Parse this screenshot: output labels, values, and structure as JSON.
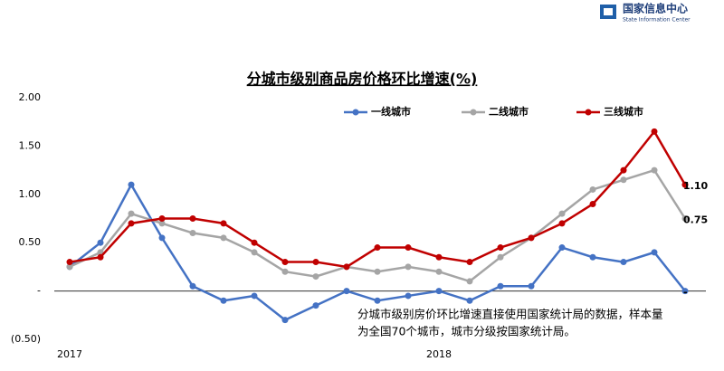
{
  "header": {
    "org_cn": "国家信息中心",
    "org_en": "State Information Center"
  },
  "chart_data": {
    "type": "line",
    "title": "分城市级别商品房价格环比增速(%)",
    "categories": [
      "2017",
      null,
      null,
      null,
      null,
      null,
      null,
      null,
      null,
      null,
      null,
      null,
      "2018",
      null,
      null,
      null,
      null,
      null,
      null,
      null,
      null
    ],
    "series": [
      {
        "name": "一线城市",
        "color": "#4472c4",
        "values": [
          0.25,
          0.5,
          1.1,
          0.55,
          0.05,
          -0.1,
          -0.05,
          -0.3,
          -0.15,
          0,
          -0.1,
          -0.05,
          0,
          -0.1,
          0.05,
          0.05,
          0.45,
          0.35,
          0.3,
          0.4,
          0
        ],
        "value_labels": [
          null,
          null,
          null,
          null,
          null,
          null,
          null,
          null,
          null,
          null,
          null,
          null,
          null,
          null,
          null,
          null,
          null,
          null,
          null,
          null,
          "-"
        ]
      },
      {
        "name": "二线城市",
        "color": "#a5a5a5",
        "values": [
          0.25,
          0.4,
          0.8,
          0.7,
          0.6,
          0.55,
          0.4,
          0.2,
          0.15,
          0.25,
          0.2,
          0.25,
          0.2,
          0.1,
          0.35,
          0.55,
          0.8,
          1.05,
          1.15,
          1.25,
          0.75
        ],
        "value_labels": [
          null,
          null,
          null,
          null,
          null,
          null,
          null,
          null,
          null,
          null,
          null,
          null,
          null,
          null,
          null,
          null,
          null,
          null,
          null,
          null,
          "0.75"
        ]
      },
      {
        "name": "三线城市",
        "color": "#c00000",
        "values": [
          0.3,
          0.35,
          0.7,
          0.75,
          0.75,
          0.7,
          0.5,
          0.3,
          0.3,
          0.25,
          0.45,
          0.45,
          0.35,
          0.3,
          0.45,
          0.55,
          0.7,
          0.9,
          1.25,
          1.65,
          1.1
        ],
        "value_labels": [
          null,
          null,
          null,
          null,
          null,
          null,
          null,
          null,
          null,
          null,
          null,
          null,
          null,
          null,
          null,
          null,
          null,
          null,
          null,
          null,
          "1.10"
        ]
      }
    ],
    "ylim": [
      -0.5,
      2
    ],
    "yticks": [
      {
        "value": -0.5,
        "label": "(0.50)"
      },
      {
        "value": 0,
        "label": "-"
      },
      {
        "value": 0.5,
        "label": "0.50"
      },
      {
        "value": 1,
        "label": "1.00"
      },
      {
        "value": 1.5,
        "label": "1.50"
      },
      {
        "value": 2,
        "label": "2.00"
      }
    ],
    "annotation": [
      "分城市级别房价环比增速直接使用国家统计局的数据，样本量",
      "为全国70个城市，城市分级按国家统计局。"
    ],
    "legend": "top"
  }
}
